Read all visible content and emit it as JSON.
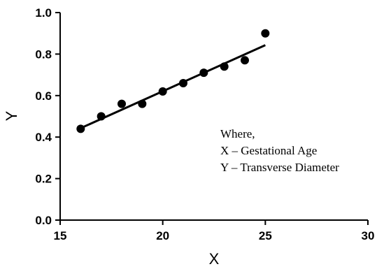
{
  "chart_data": {
    "type": "scatter",
    "xlabel": "X",
    "ylabel": "Y",
    "xlim": [
      15,
      30
    ],
    "ylim": [
      0.0,
      1.0
    ],
    "xticks": [
      "15",
      "20",
      "25",
      "30"
    ],
    "yticks": [
      "0.0",
      "0.2",
      "0.4",
      "0.6",
      "0.8",
      "1.0"
    ],
    "grid": false,
    "points": [
      {
        "x": 16,
        "y": 0.44
      },
      {
        "x": 17,
        "y": 0.5
      },
      {
        "x": 18,
        "y": 0.56
      },
      {
        "x": 19,
        "y": 0.56
      },
      {
        "x": 20,
        "y": 0.62
      },
      {
        "x": 21,
        "y": 0.66
      },
      {
        "x": 22,
        "y": 0.71
      },
      {
        "x": 23,
        "y": 0.74
      },
      {
        "x": 24,
        "y": 0.77
      },
      {
        "x": 25,
        "y": 0.9
      }
    ],
    "fit_line": {
      "x_start": 16,
      "y_start": 0.443,
      "x_end": 25,
      "y_end": 0.843
    },
    "annotation": [
      "Where,",
      "X – Gestational Age",
      "Y – Transverse Diameter"
    ],
    "colors": {
      "marker": "#000000",
      "line": "#000000",
      "axis": "#000000"
    }
  }
}
